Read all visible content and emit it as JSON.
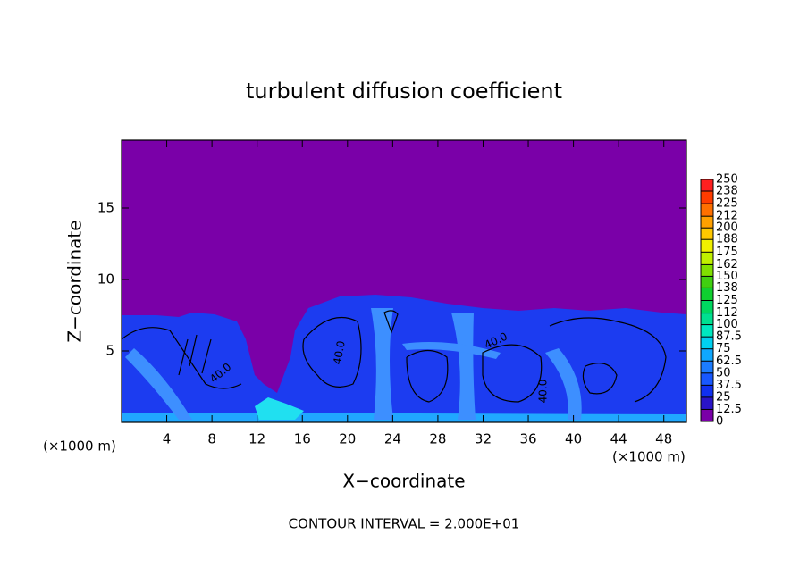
{
  "chart_data": {
    "type": "contour",
    "title": "turbulent diffusion coefficient",
    "x_label": "X−coordinate",
    "y_label": "Z−coordinate",
    "x_unit_label": "(×1000 m)",
    "y_unit_label": "(×1000 m)",
    "footer": "CONTOUR INTERVAL = 2.000E+01",
    "xlim": [
      0,
      50
    ],
    "xticks": [
      4,
      8,
      12,
      16,
      20,
      24,
      28,
      32,
      36,
      40,
      44,
      48
    ],
    "ylim": [
      0,
      19.75
    ],
    "yticks": [
      5,
      10,
      15
    ],
    "contour_labels": [
      "40.0",
      "40.0",
      "40.0",
      "40.0"
    ],
    "colorbar": {
      "levels": [
        0,
        12.5,
        25,
        37.5,
        50,
        62.5,
        75,
        87.5,
        100,
        112,
        125,
        138,
        150,
        162,
        175,
        188,
        200,
        212,
        225,
        238,
        250
      ],
      "colors": [
        "#7a00a8",
        "#2a14c8",
        "#1030f0",
        "#1858ff",
        "#1c7cff",
        "#10a8ff",
        "#00d0f0",
        "#00e8c0",
        "#00e090",
        "#00d860",
        "#10d030",
        "#40d010",
        "#80e000",
        "#c0f000",
        "#f0f000",
        "#ffc800",
        "#ffa000",
        "#ff7000",
        "#ff3c00",
        "#ff2020"
      ]
    }
  }
}
